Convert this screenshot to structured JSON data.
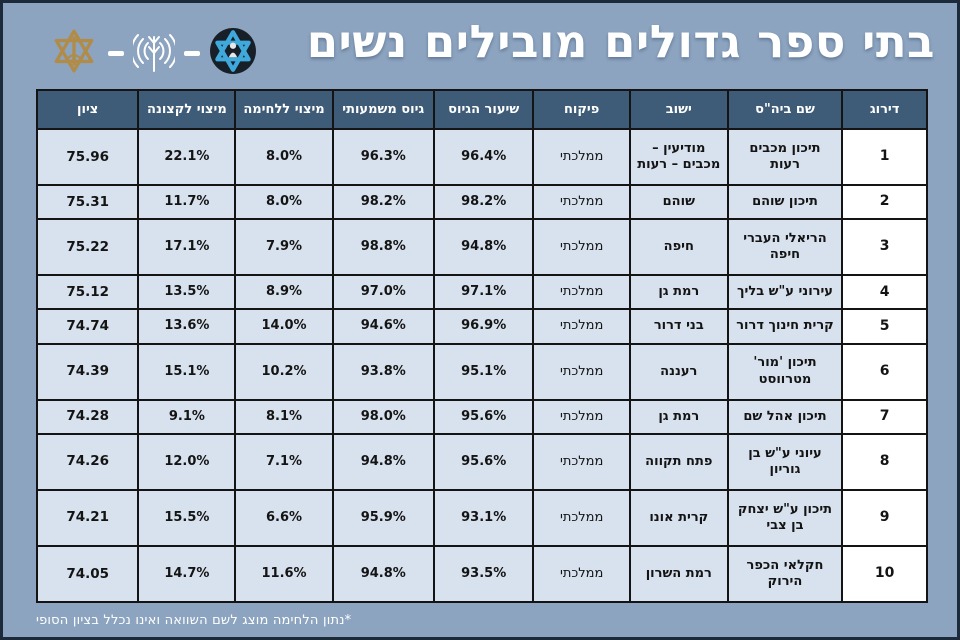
{
  "title": "בתי ספר גדולים מובילים נשים",
  "footnote": "*נתון הלחימה מוצג לשם השוואה ואינו נכלל בציון הסופי",
  "icons": [
    "idf-insignia-icon",
    "radio-antenna-icon",
    "round-unit-emblem-icon"
  ],
  "colors": {
    "background": "#8CA4C0",
    "header_bg": "#3E5C78",
    "cell_bg": "#D8E2EE",
    "rank_cell_bg": "#FFFFFF",
    "border": "#141414",
    "title_text": "#FFFFFF",
    "emblem_gold": "#B08C48",
    "emblem_blue": "#3FA9DC"
  },
  "chart_data": {
    "type": "table",
    "title": "בתי ספר גדולים מובילים נשים",
    "columns": [
      {
        "key": "rank",
        "label": "דירוג"
      },
      {
        "key": "school",
        "label": "שם ביה\"ס"
      },
      {
        "key": "city",
        "label": "ישוב"
      },
      {
        "key": "supervision",
        "label": "פיקוח"
      },
      {
        "key": "enlistment_rate",
        "label": "שיעור הגיוס"
      },
      {
        "key": "meaningful_enlistment",
        "label": "גיוס משמעותי"
      },
      {
        "key": "combat_utilization",
        "label": "מיצוי ללחימה"
      },
      {
        "key": "officer_utilization",
        "label": "מיצוי לקצונה"
      },
      {
        "key": "score",
        "label": "ציון"
      }
    ],
    "rows": [
      {
        "rank": "1",
        "school": "תיכון מכבים רעות",
        "city": "מודיעין – מכבים – רעות",
        "supervision": "ממלכתי",
        "enlistment_rate": "96.4%",
        "meaningful_enlistment": "96.3%",
        "combat_utilization": "8.0%",
        "officer_utilization": "22.1%",
        "score": "75.96"
      },
      {
        "rank": "2",
        "school": "תיכון שוהם",
        "city": "שוהם",
        "supervision": "ממלכתי",
        "enlistment_rate": "98.2%",
        "meaningful_enlistment": "98.2%",
        "combat_utilization": "8.0%",
        "officer_utilization": "11.7%",
        "score": "75.31"
      },
      {
        "rank": "3",
        "school": "הריאלי העברי חיפה",
        "city": "חיפה",
        "supervision": "ממלכתי",
        "enlistment_rate": "94.8%",
        "meaningful_enlistment": "98.8%",
        "combat_utilization": "7.9%",
        "officer_utilization": "17.1%",
        "score": "75.22"
      },
      {
        "rank": "4",
        "school": "עירוני ע\"ש בליך",
        "city": "רמת גן",
        "supervision": "ממלכתי",
        "enlistment_rate": "97.1%",
        "meaningful_enlistment": "97.0%",
        "combat_utilization": "8.9%",
        "officer_utilization": "13.5%",
        "score": "75.12"
      },
      {
        "rank": "5",
        "school": "קרית חינוך דרור",
        "city": "בני דרור",
        "supervision": "ממלכתי",
        "enlistment_rate": "96.9%",
        "meaningful_enlistment": "94.6%",
        "combat_utilization": "14.0%",
        "officer_utilization": "13.6%",
        "score": "74.74"
      },
      {
        "rank": "6",
        "school": "תיכון 'מור' מטרווסט",
        "city": "רעננה",
        "supervision": "ממלכתי",
        "enlistment_rate": "95.1%",
        "meaningful_enlistment": "93.8%",
        "combat_utilization": "10.2%",
        "officer_utilization": "15.1%",
        "score": "74.39"
      },
      {
        "rank": "7",
        "school": "תיכון אהל שם",
        "city": "רמת גן",
        "supervision": "ממלכתי",
        "enlistment_rate": "95.6%",
        "meaningful_enlistment": "98.0%",
        "combat_utilization": "8.1%",
        "officer_utilization": "9.1%",
        "score": "74.28"
      },
      {
        "rank": "8",
        "school": "עיוני ע\"ש בן גוריון",
        "city": "פתח תקווה",
        "supervision": "ממלכתי",
        "enlistment_rate": "95.6%",
        "meaningful_enlistment": "94.8%",
        "combat_utilization": "7.1%",
        "officer_utilization": "12.0%",
        "score": "74.26"
      },
      {
        "rank": "9",
        "school": "תיכון ע\"ש יצחק בן צבי",
        "city": "קרית אונו",
        "supervision": "ממלכתי",
        "enlistment_rate": "93.1%",
        "meaningful_enlistment": "95.9%",
        "combat_utilization": "6.6%",
        "officer_utilization": "15.5%",
        "score": "74.21"
      },
      {
        "rank": "10",
        "school": "חקלאי הכפר הירוק",
        "city": "רמת השרון",
        "supervision": "ממלכתי",
        "enlistment_rate": "93.5%",
        "meaningful_enlistment": "94.8%",
        "combat_utilization": "11.6%",
        "officer_utilization": "14.7%",
        "score": "74.05"
      }
    ]
  }
}
